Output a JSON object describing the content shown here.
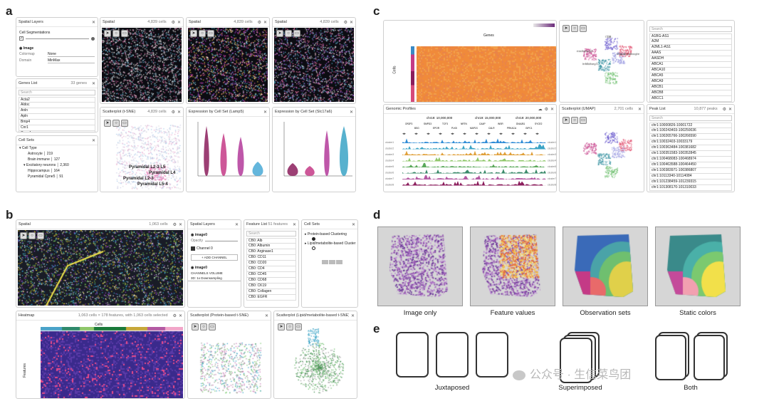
{
  "labels": {
    "a": "a",
    "b": "b",
    "c": "c",
    "d": "d",
    "e": "e"
  },
  "a": {
    "layers": {
      "title": "Spatial Layers",
      "cellseg": "Cell Segmentations",
      "image": "Image",
      "colormap_l": "Colormap",
      "colormap_v": "None",
      "domain_l": "Domain",
      "domain_v": "MinMax"
    },
    "spatial": [
      {
        "title": "Spatial",
        "meta": "4,839 cells"
      },
      {
        "title": "Spatial",
        "meta": "4,839 cells"
      },
      {
        "title": "Spatial",
        "meta": "4,839 cells"
      }
    ],
    "genes": {
      "title": "Genes List",
      "meta": "33 genes",
      "search": "Search",
      "items": [
        "Acta2",
        "Aldoc",
        "Anln",
        "Apln",
        "Bmp4",
        "Cnr1",
        "Cspg4"
      ]
    },
    "cellsets": {
      "title": "Cell Sets",
      "items": [
        "▾ Cell Type",
        "Astrocyte │ 219",
        "Brain immune │ 127",
        "▾ Excitatory neurons │ 2,360",
        "Hippocampus │ 164",
        "Pyramidal Cpne5 │ 91"
      ]
    },
    "scatter": {
      "title": "Scatterplot (t-SNE)",
      "meta": "4,839 cells",
      "clusters": [
        "Pyramidal L2-3 L5",
        "Pyramidal L4",
        "Pyramidal L2-3",
        "Pyramidal L5-4"
      ]
    },
    "expr1": {
      "title": "Expression by Cell Set (Lamp5)"
    },
    "expr2": {
      "title": "Expression by Cell Set (Slc17a6)"
    }
  },
  "b": {
    "spatial": {
      "title": "Spatial",
      "meta": "1,063 cells"
    },
    "layers": {
      "title": "Spatial Layers",
      "img1": "image0",
      "opacity": "Opacity",
      "channel": "Channel 0",
      "add": "+ ADD CHANNEL",
      "img2": "image0",
      "ch_l": "CHANNELS",
      "vol_l": "VOLUME",
      "ds": "3D: 1x Downsampling"
    },
    "features": {
      "title": "Feature List",
      "meta": "51 features",
      "search": "Search",
      "items": [
        "CB0: Alb",
        "CB0: Albumin",
        "CB0: Arginase1",
        "CB0: CD11",
        "CB0: CD20",
        "CB0: CD4",
        "CB0: CD45",
        "CB0: CD68",
        "CB0: CK19",
        "CB0: Collagen",
        "CB0: EGFR"
      ]
    },
    "cellsets": {
      "title": "Cell Sets",
      "items": [
        "Protein-based Clustering",
        "Lipid/metabolite-based Cluster"
      ]
    },
    "heatmap": {
      "title": "Heatmap",
      "meta": "1,063 cells × 178 features, with 1,063 cells selected",
      "xlab": "Cells",
      "ylab": "Features"
    },
    "scat1": {
      "title": "Scatterplot (Protein-based t-SNE)"
    },
    "scat2": {
      "title": "Scatterplot (Lipid/metabolite-based t-SNE)"
    }
  },
  "c": {
    "heat": {
      "xlab": "Genes",
      "ylab": "Cells"
    },
    "search": {
      "title": "Search",
      "items": [
        "A1BG-AS1",
        "A2M",
        "A2ML1-AS1",
        "AAAS",
        "AASDH",
        "ABCA1",
        "ABCA10",
        "ABCA5",
        "ABCA9",
        "ABCB1",
        "ABCB8",
        "ABCC1"
      ]
    },
    "genomic": {
      "title": "Genomic Profiles",
      "ticks": [
        "chr19: 10,000,000",
        "chr19: 15,000,000",
        "chr19: 20,000,000"
      ],
      "genes": [
        "OR2F3",
        "BSG",
        "SMPD3",
        "EPOR",
        "TCF3",
        "PLK5",
        "NRTN",
        "MAP1S",
        "CAAP",
        "CALR",
        "INSR",
        "PRKACA",
        "DNAJB1",
        "GIPC1",
        "SYCE2"
      ],
      "tracks": [
        "cluster1",
        "cluster2",
        "cluster3",
        "cluster4",
        "cluster5",
        "cluster6",
        "cluster7",
        "cluster8"
      ]
    },
    "scatter": {
      "title": "Scatterplot (UMAP)",
      "meta": "2,701 cells",
      "labels": [
        "CD8",
        "oligodendrocyte",
        "excitatory1",
        "inhibitory1"
      ]
    },
    "peaks": {
      "title": "Peak List",
      "meta": "10,877 peaks",
      "search": "Search",
      "items": [
        "chr1:10000826-10001722",
        "chr1:100243403-100250036",
        "chr1:100265766-100266590",
        "chr1:10032403-10033179",
        "chr1:100363484-100381682",
        "chr1:100351583-100352845",
        "chr1:100468083-100468974",
        "chr1:100463588-100464450",
        "chr1:100383971-100386807",
        "chr1:10113340-10114084",
        "chr1:101238459-101239315",
        "chr1:101308170-101310033"
      ]
    }
  },
  "d": {
    "captions": [
      "Image only",
      "Feature values",
      "Observation sets",
      "Static colors"
    ]
  },
  "e": {
    "captions": [
      "Juxtaposed",
      "Superimposed",
      "Both"
    ]
  },
  "watermark": "公众号 · 生信菜鸟团",
  "colors": {
    "accent": "#e23a8a",
    "teal": "#3aa3c5",
    "purple": "#6b2b7a"
  }
}
